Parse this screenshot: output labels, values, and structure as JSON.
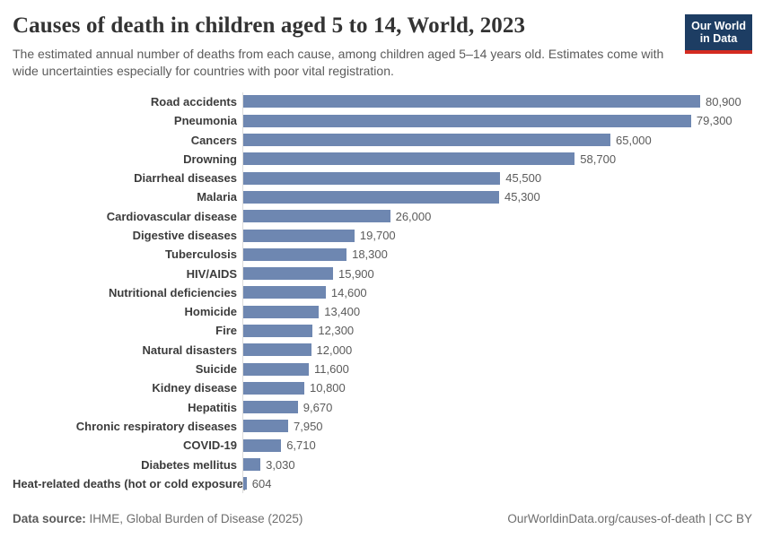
{
  "header": {
    "title": "Causes of death in children aged 5 to 14, World, 2023",
    "subtitle": "The estimated annual number of deaths from each cause, among children aged 5–14 years old. Estimates come with wide uncertainties especially for countries with poor vital registration.",
    "logo": {
      "line1": "Our World",
      "line2": "in Data",
      "bg_color": "#1d3d63",
      "accent_color": "#d42b21"
    }
  },
  "chart_data": {
    "type": "bar",
    "orientation": "horizontal",
    "title": "Causes of death in children aged 5 to 14, World, 2023",
    "xlabel": "",
    "ylabel": "",
    "xlim": [
      0,
      84000
    ],
    "grid": false,
    "legend": "none",
    "bar_color": "#6e87b1",
    "axis_line_color": "#dcdcdc",
    "categories": [
      "Road accidents",
      "Pneumonia",
      "Cancers",
      "Drowning",
      "Diarrheal diseases",
      "Malaria",
      "Cardiovascular disease",
      "Digestive diseases",
      "Tuberculosis",
      "HIV/AIDS",
      "Nutritional deficiencies",
      "Homicide",
      "Fire",
      "Natural disasters",
      "Suicide",
      "Kidney disease",
      "Hepatitis",
      "Chronic respiratory diseases",
      "COVID-19",
      "Diabetes mellitus",
      "Heat-related deaths (hot or cold exposure)"
    ],
    "values": [
      80900,
      79300,
      65000,
      58700,
      45500,
      45300,
      26000,
      19700,
      18300,
      15900,
      14600,
      13400,
      12300,
      12000,
      11600,
      10800,
      9670,
      7950,
      6710,
      3030,
      604
    ],
    "value_labels": [
      "80,900",
      "79,300",
      "65,000",
      "58,700",
      "45,500",
      "45,300",
      "26,000",
      "19,700",
      "18,300",
      "15,900",
      "14,600",
      "13,400",
      "12,300",
      "12,000",
      "11,600",
      "10,800",
      "9,670",
      "7,950",
      "6,710",
      "3,030",
      "604"
    ]
  },
  "footer": {
    "source_label": "Data source:",
    "source_text": " IHME, Global Burden of Disease (2025)",
    "link_text": "OurWorldinData.org/causes-of-death | CC BY"
  }
}
